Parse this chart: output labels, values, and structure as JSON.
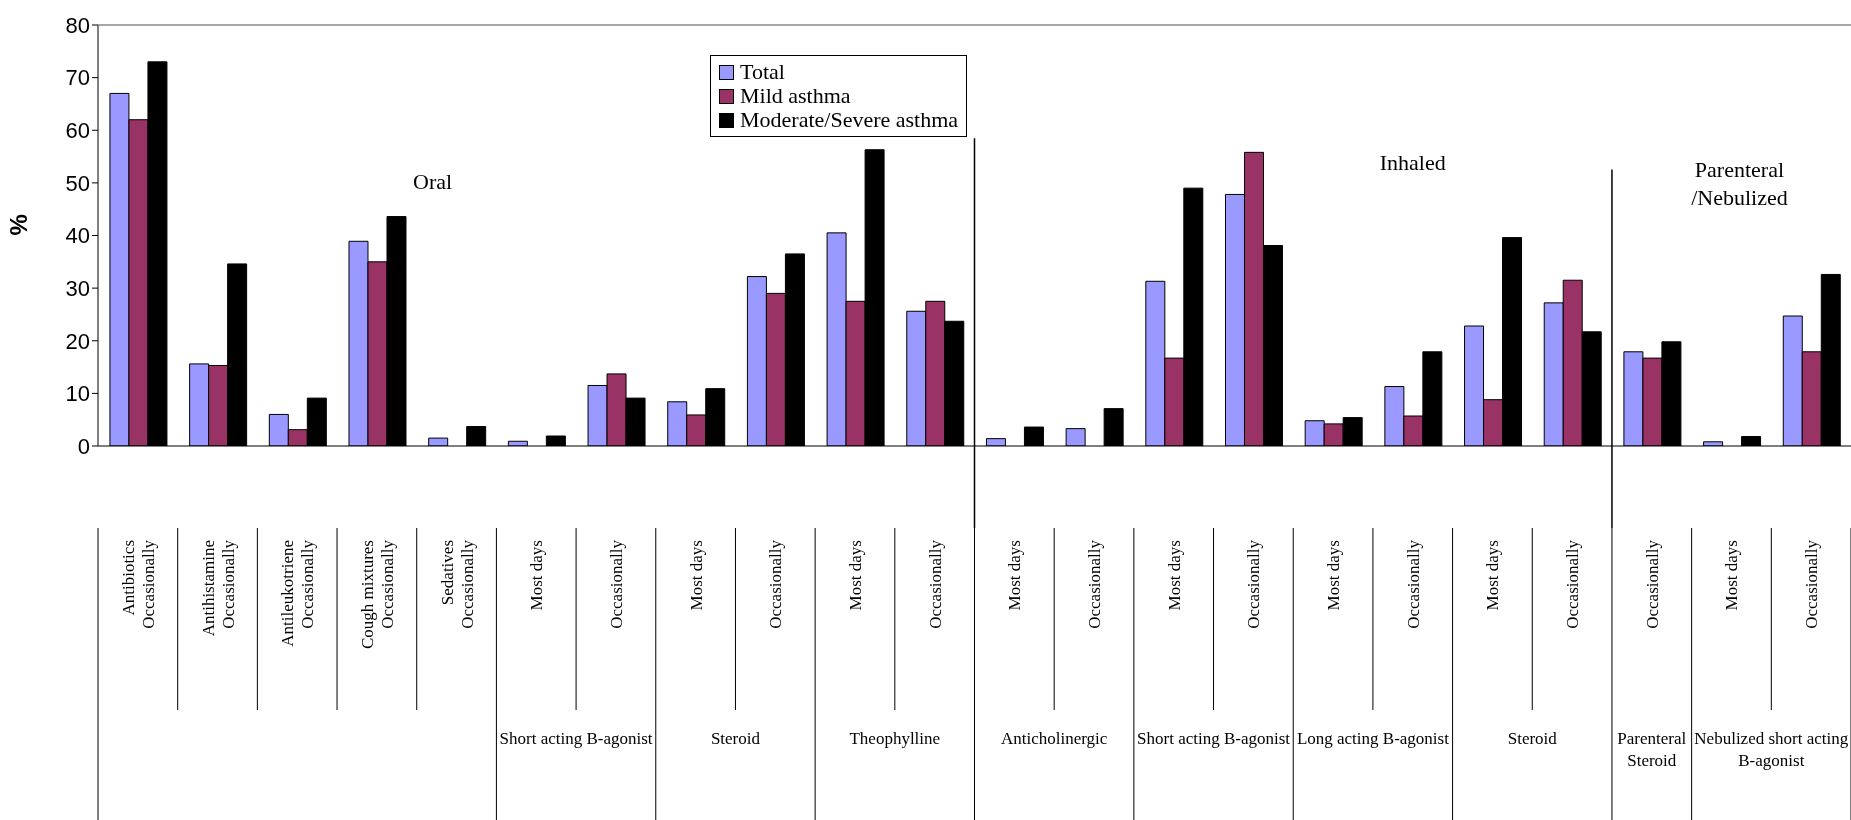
{
  "chart_data": {
    "type": "bar",
    "ylabel": "%",
    "categories": [
      "Antibiotics\nOccasionally",
      "Antihistamine\nOccasionally",
      "Antileukotriene\nOccasionally",
      "Cough mixtures\nOccasionally",
      "Sedatives\nOccasionally",
      "Most days",
      "Occasionally",
      "Most days",
      "Occasionally",
      "Most days",
      "Occasionally",
      "Most days",
      "Occasionally",
      "Most days",
      "Occasionally",
      "Most days",
      "Occasionally",
      "Most days",
      "Occasionally",
      "Occasionally",
      "Most days",
      "Occasionally"
    ],
    "series": [
      {
        "name": "Total",
        "color": "#9999ff",
        "values": [
          67,
          15.6,
          6,
          38.9,
          1.5,
          0.9,
          11.5,
          8.4,
          32.2,
          40.5,
          25.6,
          1.4,
          3.3,
          31.3,
          47.8,
          4.8,
          11.3,
          22.8,
          27.2,
          17.9,
          0.8,
          24.7
        ]
      },
      {
        "name": "Mild asthma",
        "color": "#993366",
        "values": [
          62,
          15.3,
          3.1,
          35,
          0,
          0,
          13.7,
          5.9,
          29,
          27.5,
          27.5,
          0,
          0,
          16.7,
          55.8,
          4.2,
          5.7,
          8.8,
          31.5,
          16.7,
          0,
          17.9
        ]
      },
      {
        "name": "Moderate/Severe asthma",
        "color": "#000000",
        "values": [
          73,
          34.6,
          9.1,
          43.6,
          3.7,
          1.9,
          9.1,
          10.9,
          36.5,
          56.3,
          23.7,
          3.6,
          7.1,
          49,
          38.1,
          5.4,
          17.9,
          39.6,
          21.7,
          19.8,
          1.8,
          32.6
        ]
      }
    ],
    "ylim": [
      0,
      80
    ],
    "yticks": [
      0,
      10,
      20,
      30,
      40,
      50,
      60,
      70,
      80
    ],
    "grid": false,
    "legend": "top",
    "annotations": [
      "Oral",
      "Inhaled",
      "Parenteral /Nebulized",
      "Short acting B-agonist",
      "Steroid",
      "Theophylline",
      "Anticholinergic",
      "Short acting B-agonist",
      "Long acting B-agonist",
      "Steroid",
      "Parenteral Steroid",
      "Nebulized short acting B-agonist"
    ]
  }
}
